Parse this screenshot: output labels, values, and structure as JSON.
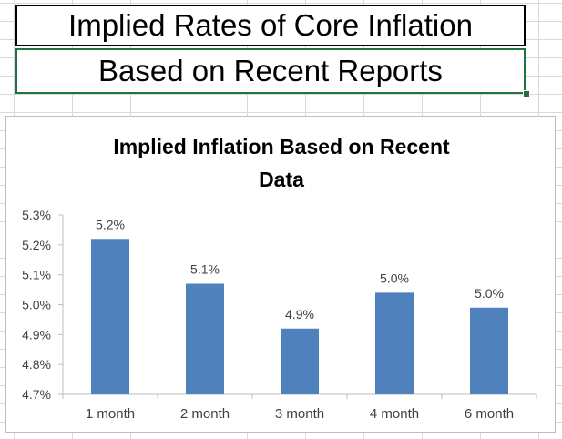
{
  "sheet": {
    "title_line1": "Implied Rates of Core Inflation",
    "title_line2": "Based on Recent Reports"
  },
  "colors": {
    "bar": "#4f81bd",
    "selection": "#217346",
    "gridline": "#d9d9d9"
  },
  "chart_data": {
    "type": "bar",
    "title_lines": [
      "Implied Inflation Based on Recent",
      "Data"
    ],
    "categories": [
      "1 month",
      "2 month",
      "3 month",
      "4 month",
      "6 month"
    ],
    "values": [
      5.22,
      5.07,
      4.92,
      5.04,
      4.99
    ],
    "data_labels": [
      "5.2%",
      "5.1%",
      "4.9%",
      "5.0%",
      "5.0%"
    ],
    "ylim": [
      4.7,
      5.3
    ],
    "yticks": [
      5.3,
      5.2,
      5.1,
      5.0,
      4.9,
      4.8,
      4.7
    ],
    "ytick_labels": [
      "5.3%",
      "5.2%",
      "5.1%",
      "5.0%",
      "4.9%",
      "4.8%",
      "4.7%"
    ],
    "grid": false,
    "legend": "none"
  }
}
